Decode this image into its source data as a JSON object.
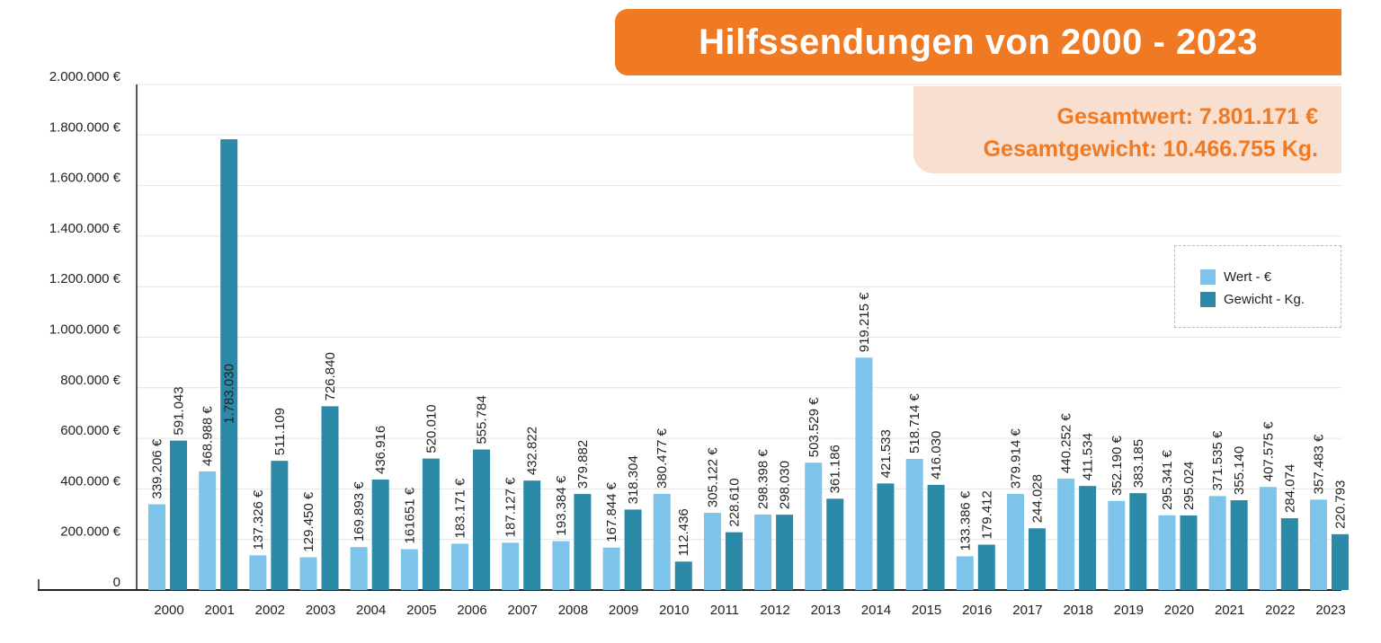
{
  "chart_data": {
    "type": "bar",
    "title": "Hilfssendungen von 2000 - 2023",
    "totals": {
      "value_line": "Gesamtwert: 7.801.171 €",
      "weight_line": "Gesamtgewicht: 10.466.755 Kg."
    },
    "categories": [
      "2000",
      "2001",
      "2002",
      "2003",
      "2004",
      "2005",
      "2006",
      "2007",
      "2008",
      "2009",
      "2010",
      "2011",
      "2012",
      "2013",
      "2014",
      "2015",
      "2016",
      "2017",
      "2018",
      "2019",
      "2020",
      "2021",
      "2022",
      "2023"
    ],
    "series": [
      {
        "name": "Wert - €",
        "color": "#7dc3ea",
        "values": [
          339206,
          468988,
          137326,
          129450,
          169893,
          161651,
          183171,
          187127,
          193384,
          167844,
          380477,
          305122,
          298398,
          503529,
          919215,
          518714,
          133386,
          379914,
          440252,
          352190,
          295341,
          371535,
          407575,
          357483
        ],
        "labels": [
          "339.206 €",
          "468.988 €",
          "137.326 €",
          "129.450 €",
          "169.893 €",
          "161651 €",
          "183.171 €",
          "187.127 €",
          "193.384 €",
          "167.844 €",
          "380.477 €",
          "305.122 €",
          "298.398 €",
          "503.529 €",
          "919.215 €",
          "518.714 €",
          "133.386 €",
          "379.914 €",
          "440.252 €",
          "352.190 €",
          "295.341 €",
          "371.535 €",
          "407.575 €",
          "357.483 €"
        ]
      },
      {
        "name": "Gewicht - Kg.",
        "color": "#2b8aa8",
        "values": [
          591043,
          1783030,
          511109,
          726840,
          436916,
          520010,
          555784,
          432822,
          379882,
          318304,
          112436,
          228610,
          298030,
          361186,
          421533,
          416030,
          179412,
          244028,
          411534,
          383185,
          295024,
          355140,
          284074,
          220793
        ],
        "labels": [
          "591.043",
          "1.783.030",
          "511.109",
          "726.840",
          "436.916",
          "520.010",
          "555.784",
          "432.822",
          "379.882",
          "318.304",
          "112.436",
          "228.610",
          "298.030",
          "361.186",
          "421.533",
          "416.030",
          "179.412",
          "244.028",
          "411.534",
          "383.185",
          "295.024",
          "355.140",
          "284.074",
          "220.793"
        ]
      }
    ],
    "yticks": [
      0,
      200000,
      400000,
      600000,
      800000,
      1000000,
      1200000,
      1400000,
      1600000,
      1800000,
      2000000
    ],
    "ytick_labels": [
      "0",
      "200.000 €",
      "400.000 €",
      "600.000 €",
      "800.000 €",
      "1.000.000 €",
      "1.200.000 €",
      "1.400.000 €",
      "1.600.000 €",
      "1.800.000 €",
      "2.000.000 €"
    ],
    "ylim": [
      0,
      2000000
    ],
    "grid": true,
    "legend_position": "right"
  }
}
